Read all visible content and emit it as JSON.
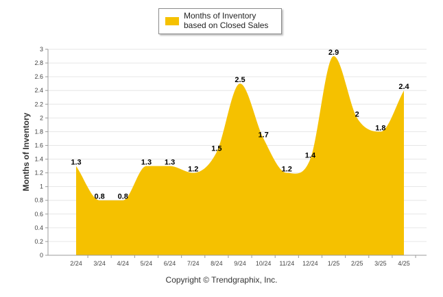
{
  "legend": {
    "label": "Months of Inventory based on Closed Sales"
  },
  "footer": {
    "copyright": "Copyright © Trendgraphix, Inc."
  },
  "colors": {
    "series_fill": "#f5c100",
    "grid": "#e6e6e6",
    "axis": "#9a9a9a"
  },
  "chart_data": {
    "type": "area",
    "title": "",
    "xlabel": "",
    "ylabel": "Months of Inventory",
    "categories": [
      "2/24",
      "3/24",
      "4/24",
      "5/24",
      "6/24",
      "7/24",
      "8/24",
      "9/24",
      "10/24",
      "11/24",
      "12/24",
      "1/25",
      "2/25",
      "3/25",
      "4/25"
    ],
    "series": [
      {
        "name": "Months of Inventory based on Closed Sales",
        "values": [
          1.3,
          0.8,
          0.8,
          1.3,
          1.3,
          1.2,
          1.5,
          2.5,
          1.7,
          1.2,
          1.4,
          2.9,
          2,
          1.8,
          2.4
        ],
        "data_labels": [
          "1.3",
          "0.8",
          "0.8",
          "1.3",
          "1.3",
          "1.2",
          "1.5",
          "2.5",
          "1.7",
          "1.2",
          "1.4",
          "2.9",
          "2",
          "1.8",
          "2.4"
        ]
      }
    ],
    "ylim": [
      0,
      3
    ],
    "yticks": [
      "0",
      "0.2",
      "0.4",
      "0.6",
      "0.8",
      "1",
      "1.2",
      "1.4",
      "1.6",
      "1.8",
      "2",
      "2.2",
      "2.4",
      "2.6",
      "2.8",
      "3"
    ],
    "grid": true,
    "legend_position": "top-center"
  }
}
